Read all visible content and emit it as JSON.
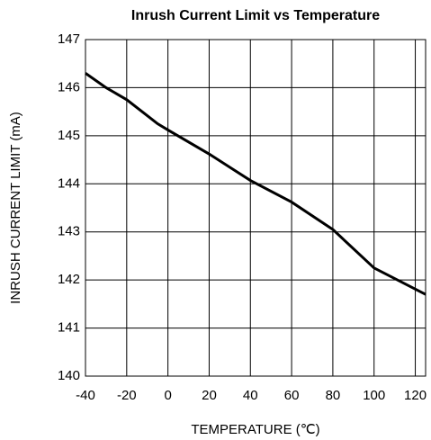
{
  "chart_data": {
    "type": "line",
    "title": "Inrush Current Limit vs Temperature",
    "x_label": "TEMPERATURE (℃)",
    "y_label": "INRUSH CURRENT LIMIT (mA)",
    "series": [
      {
        "name": "Inrush Current Limit",
        "color": "#000000",
        "x": [
          -40,
          -30,
          -20,
          -5,
          0,
          20,
          40,
          60,
          80,
          100,
          125
        ],
        "values": [
          146.3,
          146.0,
          145.75,
          145.25,
          145.12,
          144.62,
          144.07,
          143.62,
          143.05,
          142.25,
          141.7
        ]
      }
    ],
    "xlim": [
      -40,
      125
    ],
    "xticks": [
      -40,
      -20,
      0,
      20,
      40,
      60,
      80,
      100,
      120
    ],
    "ylim": [
      140,
      147
    ],
    "yticks": [
      140,
      141,
      142,
      143,
      144,
      145,
      146,
      147
    ],
    "grid": true
  }
}
